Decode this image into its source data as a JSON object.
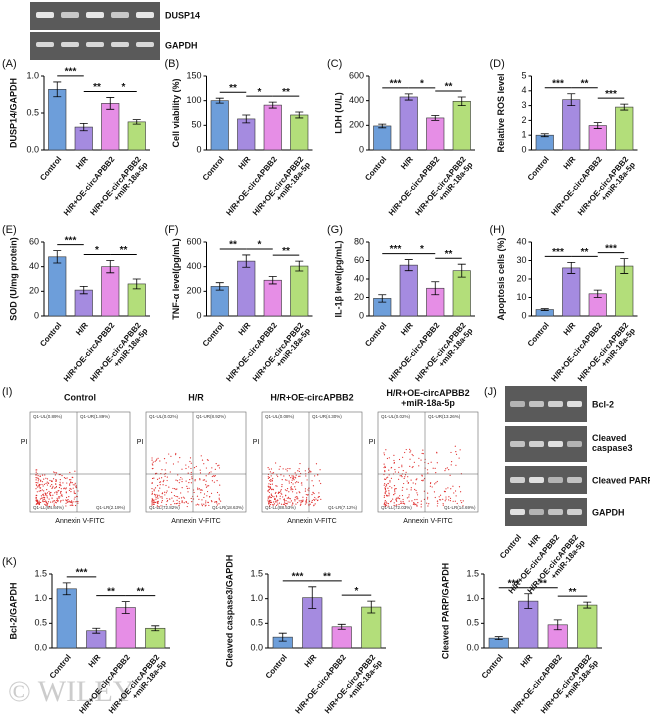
{
  "chart_data": [
    {
      "type": "bar",
      "panel_label": "(A)",
      "y_label": "DUSP14/GAPDH",
      "categories": [
        "Control",
        "H/R",
        "H/R+OE-circAPBB2",
        "H/R+OE-circAPBB2\n+miR-18a-5p"
      ],
      "colors": [
        "#6d9eda",
        "#a58be0",
        "#e68ee6",
        "#b3de7a"
      ],
      "values": [
        0.82,
        0.31,
        0.63,
        0.38
      ],
      "errors": [
        0.1,
        0.05,
        0.08,
        0.03
      ],
      "ylim": [
        0,
        1.0
      ],
      "yticks": [
        {
          "value": 0,
          "label": "0.0"
        },
        0.5,
        {
          "value": 1,
          "label": "1.0"
        }
      ],
      "significance": [
        {
          "pair": [
            0,
            1
          ],
          "text": "***"
        },
        {
          "pair": [
            1,
            2
          ],
          "text": "**"
        },
        {
          "pair": [
            2,
            3
          ],
          "text": "*"
        }
      ]
    },
    {
      "type": "bar",
      "panel_label": "(B)",
      "y_label": "Cell viability (%)",
      "categories": [
        "Control",
        "H/R",
        "H/R+OE-circAPBB2",
        "H/R+OE-circAPBB2\n+miR-18a-5p"
      ],
      "colors": [
        "#6d9eda",
        "#a58be0",
        "#e68ee6",
        "#b3de7a"
      ],
      "values": [
        100,
        63,
        91,
        71
      ],
      "errors": [
        5,
        8,
        6,
        6
      ],
      "ylim": [
        0,
        150
      ],
      "yticks": [
        0,
        50,
        100,
        150
      ],
      "significance": [
        {
          "pair": [
            0,
            1
          ],
          "text": "**"
        },
        {
          "pair": [
            1,
            2
          ],
          "text": "*"
        },
        {
          "pair": [
            2,
            3
          ],
          "text": "**"
        }
      ]
    },
    {
      "type": "bar",
      "panel_label": "(C)",
      "y_label": "LDH (U/L)",
      "categories": [
        "Control",
        "H/R",
        "H/R+OE-circAPBB2",
        "H/R+OE-circAPBB2\n+miR-18a-5p"
      ],
      "colors": [
        "#6d9eda",
        "#a58be0",
        "#e68ee6",
        "#b3de7a"
      ],
      "values": [
        195,
        430,
        260,
        395
      ],
      "errors": [
        15,
        25,
        20,
        35
      ],
      "ylim": [
        0,
        600
      ],
      "yticks": [
        0,
        200,
        400,
        600
      ],
      "significance": [
        {
          "pair": [
            0,
            1
          ],
          "text": "***"
        },
        {
          "pair": [
            1,
            2
          ],
          "text": "*"
        },
        {
          "pair": [
            2,
            3
          ],
          "text": "**"
        }
      ]
    },
    {
      "type": "bar",
      "panel_label": "(D)",
      "y_label": "Relative ROS level",
      "categories": [
        "Control",
        "H/R",
        "H/R+OE-circAPBB2",
        "H/R+OE-circAPBB2\n+miR-18a-5p"
      ],
      "colors": [
        "#6d9eda",
        "#a58be0",
        "#e68ee6",
        "#b3de7a"
      ],
      "values": [
        1.0,
        3.4,
        1.65,
        2.9
      ],
      "errors": [
        0.1,
        0.4,
        0.2,
        0.2
      ],
      "ylim": [
        0,
        5
      ],
      "yticks": [
        0,
        1,
        2,
        3,
        4,
        5
      ],
      "significance": [
        {
          "pair": [
            0,
            1
          ],
          "text": "***"
        },
        {
          "pair": [
            1,
            2
          ],
          "text": "**"
        },
        {
          "pair": [
            2,
            3
          ],
          "text": "***"
        }
      ]
    },
    {
      "type": "bar",
      "panel_label": "(E)",
      "y_label": "SOD (U/mg protein)",
      "categories": [
        "Control",
        "H/R",
        "H/R+OE-circAPBB2",
        "H/R+OE-circAPBB2\n+miR-18a-5p"
      ],
      "colors": [
        "#6d9eda",
        "#a58be0",
        "#e68ee6",
        "#b3de7a"
      ],
      "values": [
        48,
        21,
        40,
        26
      ],
      "errors": [
        5,
        3,
        5,
        4
      ],
      "ylim": [
        0,
        60
      ],
      "yticks": [
        0,
        20,
        40,
        60
      ],
      "significance": [
        {
          "pair": [
            0,
            1
          ],
          "text": "***"
        },
        {
          "pair": [
            1,
            2
          ],
          "text": "*"
        },
        {
          "pair": [
            2,
            3
          ],
          "text": "**"
        }
      ]
    },
    {
      "type": "bar",
      "panel_label": "(F)",
      "y_label": "TNF-α level(pg/mL)",
      "categories": [
        "Control",
        "H/R",
        "H/R+OE-circAPBB2",
        "H/R+OE-circAPBB2\n+miR-18a-5p"
      ],
      "colors": [
        "#6d9eda",
        "#a58be0",
        "#e68ee6",
        "#b3de7a"
      ],
      "values": [
        240,
        445,
        290,
        405
      ],
      "errors": [
        30,
        50,
        30,
        40
      ],
      "ylim": [
        0,
        600
      ],
      "yticks": [
        0,
        200,
        400,
        600
      ],
      "significance": [
        {
          "pair": [
            0,
            1
          ],
          "text": "**"
        },
        {
          "pair": [
            1,
            2
          ],
          "text": "*"
        },
        {
          "pair": [
            2,
            3
          ],
          "text": "**"
        }
      ]
    },
    {
      "type": "bar",
      "panel_label": "(G)",
      "y_label": "IL-1β level(pg/mL)",
      "categories": [
        "Control",
        "H/R",
        "H/R+OE-circAPBB2",
        "H/R+OE-circAPBB2\n+miR-18a-5p"
      ],
      "colors": [
        "#6d9eda",
        "#a58be0",
        "#e68ee6",
        "#b3de7a"
      ],
      "values": [
        19,
        55,
        30,
        49
      ],
      "errors": [
        4,
        6,
        7,
        7
      ],
      "ylim": [
        0,
        80
      ],
      "yticks": [
        0,
        20,
        40,
        60,
        80
      ],
      "significance": [
        {
          "pair": [
            0,
            1
          ],
          "text": "***"
        },
        {
          "pair": [
            1,
            2
          ],
          "text": "*"
        },
        {
          "pair": [
            2,
            3
          ],
          "text": "**"
        }
      ]
    },
    {
      "type": "bar",
      "panel_label": "(H)",
      "y_label": "Apoptosis cells (%)",
      "categories": [
        "Control",
        "H/R",
        "H/R+OE-circAPBB2",
        "H/R+OE-circAPBB2\n+miR-18a-5p"
      ],
      "colors": [
        "#6d9eda",
        "#a58be0",
        "#e68ee6",
        "#b3de7a"
      ],
      "values": [
        3.5,
        26,
        12,
        27
      ],
      "errors": [
        0.5,
        3,
        2,
        4
      ],
      "ylim": [
        0,
        40
      ],
      "yticks": [
        0,
        10,
        20,
        30,
        40
      ],
      "significance": [
        {
          "pair": [
            0,
            1
          ],
          "text": "***"
        },
        {
          "pair": [
            1,
            2
          ],
          "text": "**"
        },
        {
          "pair": [
            2,
            3
          ],
          "text": "***"
        }
      ]
    },
    {
      "type": "bar",
      "panel_label": "(K)",
      "y_label": "Bcl-2/GAPDH",
      "categories": [
        "Control",
        "H/R",
        "H/R+OE-circAPBB2",
        "H/R+OE-circAPBB2\n+miR-18a-5p"
      ],
      "colors": [
        "#6d9eda",
        "#a58be0",
        "#e68ee6",
        "#b3de7a"
      ],
      "values": [
        1.2,
        0.35,
        0.82,
        0.4
      ],
      "errors": [
        0.12,
        0.05,
        0.12,
        0.05
      ],
      "ylim": [
        0,
        1.5
      ],
      "yticks": [
        {
          "value": 0,
          "label": "0.0"
        },
        0.5,
        {
          "value": 1,
          "label": "1.0"
        },
        1.5
      ],
      "significance": [
        {
          "pair": [
            0,
            1
          ],
          "text": "***"
        },
        {
          "pair": [
            1,
            2
          ],
          "text": "**"
        },
        {
          "pair": [
            2,
            3
          ],
          "text": "**"
        }
      ]
    },
    {
      "type": "bar",
      "y_label": "Cleaved caspase3/GAPDH",
      "categories": [
        "Control",
        "H/R",
        "H/R+OE-circAPBB2",
        "H/R+OE-circAPBB2\n+miR-18a-5p"
      ],
      "colors": [
        "#6d9eda",
        "#a58be0",
        "#e68ee6",
        "#b3de7a"
      ],
      "values": [
        0.22,
        1.02,
        0.43,
        0.83
      ],
      "errors": [
        0.08,
        0.22,
        0.05,
        0.12
      ],
      "ylim": [
        0,
        1.5
      ],
      "yticks": [
        {
          "value": 0,
          "label": "0.0"
        },
        0.5,
        {
          "value": 1,
          "label": "1.0"
        },
        1.5
      ],
      "significance": [
        {
          "pair": [
            0,
            1
          ],
          "text": "***"
        },
        {
          "pair": [
            1,
            2
          ],
          "text": "**"
        },
        {
          "pair": [
            2,
            3
          ],
          "text": "*"
        }
      ]
    },
    {
      "type": "bar",
      "y_label": "Cleaved PARP/GAPDH",
      "categories": [
        "Control",
        "H/R",
        "H/R+OE-circAPBB2",
        "H/R+OE-circAPBB2\n+miR-18a-5p"
      ],
      "colors": [
        "#6d9eda",
        "#a58be0",
        "#e68ee6",
        "#b3de7a"
      ],
      "values": [
        0.2,
        0.95,
        0.47,
        0.87
      ],
      "errors": [
        0.03,
        0.15,
        0.1,
        0.06
      ],
      "ylim": [
        0,
        1.5
      ],
      "yticks": [
        {
          "value": 0,
          "label": "0.0"
        },
        0.5,
        {
          "value": 1,
          "label": "1.0"
        },
        1.5
      ],
      "significance": [
        {
          "pair": [
            0,
            1
          ],
          "text": "***"
        },
        {
          "pair": [
            1,
            2
          ],
          "text": "**"
        },
        {
          "pair": [
            2,
            3
          ],
          "text": "**"
        }
      ]
    }
  ],
  "top_blot": {
    "labels": [
      "DUSP14",
      "GAPDH"
    ]
  },
  "flow": {
    "panel_label": "(I)",
    "x_label": "Annexin V-FITC",
    "y_label": "PI",
    "plots": [
      {
        "title": "Control",
        "quadrants": [
          "Q1-UL(0.89%)",
          "Q1-UR(1.89%)",
          "Q1-LL(94.84%)",
          "Q1-LR(2.19%)"
        ]
      },
      {
        "title": "H/R",
        "quadrants": [
          "Q1-UL(0.02%)",
          "Q1-UR(8.92%)",
          "Q1-LL(72.82%)",
          "Q1-LR(18.63%)"
        ]
      },
      {
        "title": "H/R+OE-circAPBB2",
        "quadrants": [
          "Q1-UL(0.08%)",
          "Q1-UR(4.30%)",
          "Q1-LL(88.53%)",
          "Q1-LR(7.12%)"
        ]
      },
      {
        "title": "H/R+OE-circAPBB2\n+miR-18a-5p",
        "quadrants": [
          "Q1-UL(0.02%)",
          "Q1-UR(13.26%)",
          "Q1-LL(72.03%)",
          "Q1-LR(14.69%)"
        ]
      }
    ]
  },
  "blot_j": {
    "panel_label": "(J)",
    "labels": [
      "Bcl-2",
      "Cleaved\ncaspase3",
      "Cleaved PARP",
      "GAPDH"
    ],
    "lanes": [
      "Control",
      "H/R",
      "H/R+OE-circAPBB2",
      "H/R+OE-circAPBB2\n+miR-18a-5p"
    ]
  },
  "watermark": "© WILEY"
}
